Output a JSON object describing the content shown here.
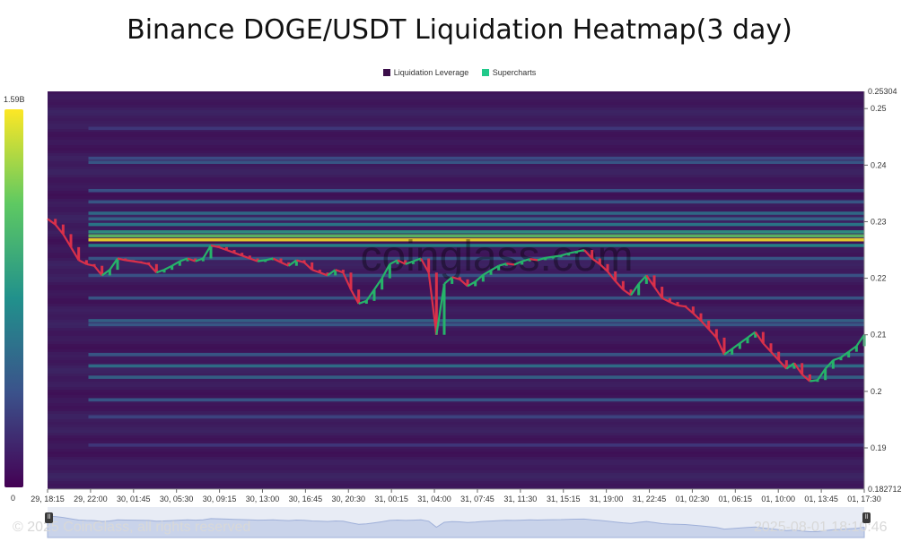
{
  "title": "Binance DOGE/USDT Liquidation Heatmap(3 day)",
  "legend": [
    {
      "label": "Liquidation Leverage",
      "color": "#3b0f4a"
    },
    {
      "label": "Supercharts",
      "color": "#21c98a"
    }
  ],
  "colorbar": {
    "max_label": "1.59B",
    "min_label": "0",
    "colors": [
      "#fde725",
      "#5ec962",
      "#21918c",
      "#3b528b",
      "#440154"
    ]
  },
  "watermark": "coinglass.com",
  "footer": {
    "copyright": "© 2025 CoinGlass, all rights reserved",
    "timestamp": "2025-08-01 18:10:46"
  },
  "chart_data": {
    "type": "heatmap",
    "title": "Binance DOGE/USDT Liquidation Heatmap(3 day)",
    "y_axis": {
      "min": 0.182712,
      "max": 0.25304,
      "edge_labels": [
        "0.25304",
        "0.182712"
      ],
      "ticks": [
        "0.25",
        "0.24",
        "0.23",
        "0.22",
        "0.21",
        "0.2",
        "0.19"
      ]
    },
    "x_ticks": [
      "29, 18:15",
      "29, 22:00",
      "30, 01:45",
      "30, 05:30",
      "30, 09:15",
      "30, 13:00",
      "30, 16:45",
      "30, 20:30",
      "31, 00:15",
      "31, 04:00",
      "31, 07:45",
      "31, 11:30",
      "31, 15:15",
      "31, 19:00",
      "31, 22:45",
      "01, 02:30",
      "01, 06:15",
      "01, 10:00",
      "01, 13:45",
      "01, 17:30"
    ],
    "liquidation_bands": [
      {
        "price": 0.2268,
        "intensity": 1.0
      },
      {
        "price": 0.2275,
        "intensity": 0.75
      },
      {
        "price": 0.2282,
        "intensity": 0.55
      },
      {
        "price": 0.2258,
        "intensity": 0.5
      },
      {
        "price": 0.2295,
        "intensity": 0.45
      },
      {
        "price": 0.2315,
        "intensity": 0.38
      },
      {
        "price": 0.2305,
        "intensity": 0.35
      },
      {
        "price": 0.2335,
        "intensity": 0.3
      },
      {
        "price": 0.2355,
        "intensity": 0.28
      },
      {
        "price": 0.2405,
        "intensity": 0.3
      },
      {
        "price": 0.2412,
        "intensity": 0.25
      },
      {
        "price": 0.2465,
        "intensity": 0.18
      },
      {
        "price": 0.2235,
        "intensity": 0.3
      },
      {
        "price": 0.2205,
        "intensity": 0.28
      },
      {
        "price": 0.2125,
        "intensity": 0.35
      },
      {
        "price": 0.2118,
        "intensity": 0.3
      },
      {
        "price": 0.2045,
        "intensity": 0.4
      },
      {
        "price": 0.2025,
        "intensity": 0.35
      },
      {
        "price": 0.2065,
        "intensity": 0.3
      },
      {
        "price": 0.1985,
        "intensity": 0.3
      },
      {
        "price": 0.1955,
        "intensity": 0.22
      },
      {
        "price": 0.1905,
        "intensity": 0.18
      },
      {
        "price": 0.2165,
        "intensity": 0.3
      }
    ],
    "price_series": {
      "name": "DOGE/USDT",
      "x_start": "29, 18:15",
      "interval_minutes": 30,
      "values": [
        0.2305,
        0.2295,
        0.2278,
        0.2255,
        0.2232,
        0.2225,
        0.2222,
        0.2205,
        0.2215,
        0.2235,
        0.2232,
        0.223,
        0.2228,
        0.2225,
        0.221,
        0.2215,
        0.2222,
        0.223,
        0.2235,
        0.223,
        0.2235,
        0.2258,
        0.2255,
        0.225,
        0.2245,
        0.224,
        0.2235,
        0.223,
        0.2232,
        0.2235,
        0.2228,
        0.2222,
        0.2232,
        0.2228,
        0.2215,
        0.221,
        0.2205,
        0.2215,
        0.221,
        0.218,
        0.2155,
        0.216,
        0.218,
        0.22,
        0.2225,
        0.2232,
        0.2225,
        0.223,
        0.2235,
        0.221,
        0.21,
        0.219,
        0.2202,
        0.2198,
        0.2186,
        0.2194,
        0.2206,
        0.2214,
        0.2222,
        0.2226,
        0.2224,
        0.223,
        0.2234,
        0.2232,
        0.2236,
        0.2238,
        0.224,
        0.2244,
        0.2247,
        0.225,
        0.2235,
        0.2225,
        0.2212,
        0.2195,
        0.218,
        0.217,
        0.219,
        0.2205,
        0.2185,
        0.2165,
        0.2158,
        0.2152,
        0.215,
        0.2138,
        0.2125,
        0.211,
        0.2095,
        0.2065,
        0.2075,
        0.2085,
        0.2095,
        0.2105,
        0.2085,
        0.207,
        0.2055,
        0.204,
        0.205,
        0.203,
        0.2018,
        0.202,
        0.204,
        0.2055,
        0.206,
        0.207,
        0.208,
        0.21
      ]
    }
  }
}
